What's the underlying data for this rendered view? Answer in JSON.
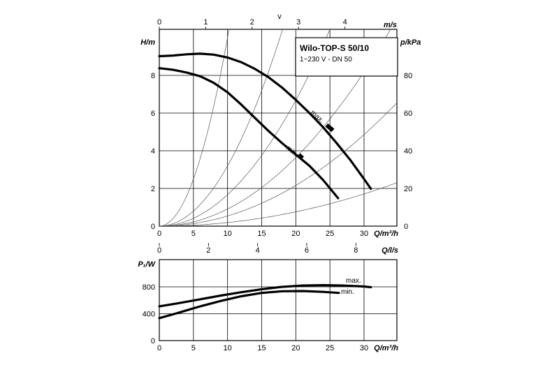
{
  "chart_data": [
    {
      "type": "line",
      "title": "Wilo-TOP-S 50/10",
      "subtitle": "1~230 V - DN 50",
      "xlabel": "Q/m³/h",
      "ylabel": "H/m",
      "y2label": "p/kPa",
      "top_axis_label": "v",
      "top_axis_unit": "m/s",
      "xlim": [
        0,
        35
      ],
      "ylim": [
        0,
        10
      ],
      "x_ticks": [
        "0",
        "5",
        "10",
        "15",
        "20",
        "25",
        "30"
      ],
      "y_ticks": [
        "0",
        "2",
        "4",
        "6",
        "8"
      ],
      "y2_ticks": [
        "0",
        "20",
        "40",
        "60",
        "80"
      ],
      "top_ticks": [
        "0",
        "1",
        "2",
        "3",
        "4"
      ],
      "top_tick_q": [
        0,
        6.8,
        13.6,
        20.4,
        27.2
      ],
      "grid": true,
      "series": [
        {
          "name": "max.",
          "x": [
            0,
            2,
            4,
            6,
            8,
            10,
            12,
            14,
            16,
            18,
            20,
            22,
            24,
            26,
            28,
            30,
            31
          ],
          "y": [
            9.02,
            9.05,
            9.12,
            9.15,
            9.1,
            8.95,
            8.7,
            8.35,
            7.9,
            7.35,
            6.7,
            6.0,
            5.25,
            4.4,
            3.5,
            2.5,
            1.98
          ]
        },
        {
          "name": "min.",
          "x": [
            0,
            2,
            4,
            6,
            8,
            10,
            12,
            14,
            16,
            18,
            20,
            22,
            24,
            26.2
          ],
          "y": [
            8.38,
            8.3,
            8.15,
            7.95,
            7.6,
            7.1,
            6.45,
            5.75,
            5.05,
            4.4,
            3.8,
            3.2,
            2.45,
            1.48
          ]
        }
      ],
      "system_curves_k": [
        0.1,
        0.032,
        0.0167,
        0.0091,
        0.0054,
        0.0019
      ]
    },
    {
      "type": "line",
      "xlabel": "Q/m³/h",
      "ylabel": "P₁/W",
      "top_axis_unit": "Q/l/s",
      "xlim": [
        0,
        35
      ],
      "ylim": [
        0,
        1000
      ],
      "x_ticks": [
        "0",
        "5",
        "10",
        "15",
        "20",
        "25",
        "30"
      ],
      "y_ticks": [
        "0",
        "400",
        "800"
      ],
      "top_ticks": [
        "0",
        "2",
        "4",
        "6",
        "8"
      ],
      "top_tick_q": [
        0,
        7.2,
        14.4,
        21.6,
        28.8
      ],
      "grid": true,
      "series": [
        {
          "name": "max.",
          "x": [
            0,
            3,
            6,
            9,
            12,
            15,
            18,
            21,
            24,
            27,
            30,
            31
          ],
          "y": [
            510,
            560,
            615,
            670,
            720,
            765,
            800,
            820,
            825,
            820,
            805,
            795
          ]
        },
        {
          "name": "min.",
          "x": [
            0,
            3,
            6,
            9,
            12,
            15,
            18,
            21,
            24,
            26.3
          ],
          "y": [
            335,
            420,
            510,
            590,
            660,
            710,
            735,
            738,
            725,
            710
          ]
        }
      ]
    }
  ]
}
